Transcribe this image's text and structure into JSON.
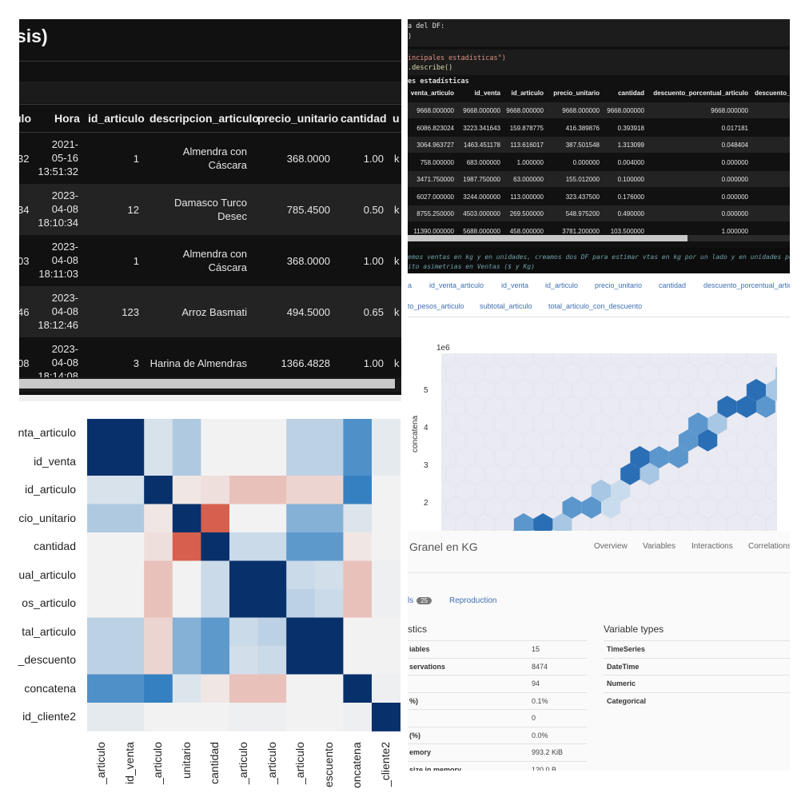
{
  "dataframe_panel": {
    "title": "sis)",
    "columns": [
      "ulo",
      "Hora",
      "id_articulo",
      "descripcion_articulo",
      "precio_unitario",
      "cantidad",
      "u"
    ],
    "rows": [
      {
        "prev": "32",
        "hora": [
          "2021-",
          "05-16",
          "13:51:32"
        ],
        "id_articulo": "1",
        "descripcion": [
          "Almendra con",
          "Cáscara"
        ],
        "precio_unitario": "368.0000",
        "cantidad": "1.00",
        "u": "k"
      },
      {
        "prev": "34",
        "hora": [
          "2023-",
          "04-08",
          "18:10:34"
        ],
        "id_articulo": "12",
        "descripcion": [
          "Damasco Turco",
          "Desec"
        ],
        "precio_unitario": "785.4500",
        "cantidad": "0.50",
        "u": "k"
      },
      {
        "prev": "03",
        "hora": [
          "2023-",
          "04-08",
          "18:11:03"
        ],
        "id_articulo": "1",
        "descripcion": [
          "Almendra con",
          "Cáscara"
        ],
        "precio_unitario": "368.0000",
        "cantidad": "1.00",
        "u": "k"
      },
      {
        "prev": "46",
        "hora": [
          "2023-",
          "04-08",
          "18:12:46"
        ],
        "id_articulo": "123",
        "descripcion": [
          "Arroz Basmati"
        ],
        "precio_unitario": "494.5000",
        "cantidad": "0.65",
        "u": "k"
      },
      {
        "prev": "08",
        "hora": [
          "2023-",
          "04-08",
          "18:14:08"
        ],
        "id_articulo": "3",
        "descripcion": [
          "Harina de Almendras"
        ],
        "precio_unitario": "1366.4828",
        "cantidad": "1.00",
        "u": "k"
      }
    ]
  },
  "describe_panel": {
    "code_line1": "a del DF:",
    "code_line2": ")",
    "code_line3_str": "incipales estadísticas\")",
    "code_line4_fn": ".describe()",
    "section_label": "es estadísticas",
    "columns": [
      "venta_articulo",
      "id_venta",
      "id_articulo",
      "precio_unitario",
      "cantidad",
      "descuento_porcentual_articulo",
      "descuento_"
    ],
    "rows": [
      [
        "9668.000000",
        "9668.000000",
        "9668.000000",
        "9668.000000",
        "9668.000000",
        "9668.000000"
      ],
      [
        "6086.823024",
        "3223.341643",
        "159.878775",
        "416.389876",
        "0.393918",
        "0.017181"
      ],
      [
        "3064.963727",
        "1463.451178",
        "113.616017",
        "387.501548",
        "1.313099",
        "0.048404"
      ],
      [
        "758.000000",
        "683.000000",
        "1.000000",
        "0.000000",
        "0.004000",
        "0.000000"
      ],
      [
        "3471.750000",
        "1987.750000",
        "63.000000",
        "155.012000",
        "0.100000",
        "0.000000"
      ],
      [
        "6027.000000",
        "3244.000000",
        "113.000000",
        "323.437500",
        "0.176000",
        "0.000000"
      ],
      [
        "8755.250000",
        "4503.000000",
        "269.500000",
        "548.975200",
        "0.490000",
        "0.000000"
      ],
      [
        "11390.000000",
        "5688.000000",
        "458.000000",
        "3781.200000",
        "103.500000",
        "1.000000"
      ]
    ],
    "comment_line1": "emos ventas en kg y en unidades, creamos dos DF para estimar vtas en kg por un lado y en unidades por",
    "comment_line2": "ito asimetrias en Ventas ($ y Kg)"
  },
  "profile_tabs": {
    "row1": [
      "a",
      "id_venta_articulo",
      "id_venta",
      "id_articulo",
      "precio_unitario",
      "cantidad",
      "descuento_porcentual_artic"
    ],
    "row2": [
      "to_pesos_articulo",
      "subtotal_articulo",
      "total_articulo_con_descuento"
    ]
  },
  "hexbin": {
    "exponent_label": "1e6",
    "y_ticks": [
      "5",
      "4",
      "3",
      "2"
    ],
    "ylabel": "concatena",
    "colors": {
      "dark": "#2a6fb5",
      "mid": "#5b97cc",
      "light": "#a7c7e5",
      "pale": "#c9dcee"
    }
  },
  "overview_panel": {
    "title": "Granel en KG",
    "nav": [
      "Overview",
      "Variables",
      "Interactions",
      "Correlations"
    ],
    "subtab_alerts": "ls",
    "subtab_alerts_count": "25",
    "subtab_reproduction": "Reproduction",
    "stats_heading": "stics",
    "stats": [
      {
        "label": "iables",
        "value": "15"
      },
      {
        "label": "servations",
        "value": "8474"
      },
      {
        "label": "",
        "value": "94"
      },
      {
        "label": "%)",
        "value": "0.1%"
      },
      {
        "label": "",
        "value": "0"
      },
      {
        "label": "(%)",
        "value": "0.0%"
      },
      {
        "label": "emory",
        "value": "993.2 KiB"
      },
      {
        "label": "size in memory",
        "value": "120.0 B"
      }
    ],
    "types_heading": "Variable types",
    "types": [
      "TimeSeries",
      "DateTime",
      "Numeric",
      "Categorical"
    ]
  },
  "heatmap": {
    "row_labels": [
      "nta_articulo",
      "id_venta",
      "id_articulo",
      "cio_unitario",
      "cantidad",
      "ual_articulo",
      "os_articulo",
      "tal_articulo",
      "_descuento",
      "concatena",
      "id_cliente2"
    ],
    "col_labels": [
      "_articulo",
      "id_venta",
      "_articulo",
      "unitario",
      "cantidad",
      "_articulo",
      "_articulo",
      "_articulo",
      "escuento",
      "oncatena",
      "_cliente2"
    ],
    "matrix": [
      [
        1.0,
        1.0,
        0.1,
        0.25,
        0.0,
        0.0,
        0.0,
        0.2,
        0.2,
        0.6,
        0.05
      ],
      [
        1.0,
        1.0,
        0.1,
        0.25,
        0.0,
        0.0,
        0.0,
        0.2,
        0.2,
        0.6,
        0.05
      ],
      [
        0.1,
        0.1,
        1.0,
        -0.05,
        -0.08,
        -0.2,
        -0.2,
        -0.12,
        -0.12,
        0.7,
        0.0
      ],
      [
        0.25,
        0.25,
        -0.05,
        1.0,
        -0.6,
        0.0,
        0.0,
        0.4,
        0.4,
        0.08,
        0.0
      ],
      [
        0.0,
        0.0,
        -0.08,
        -0.6,
        1.0,
        0.15,
        0.15,
        0.55,
        0.55,
        -0.05,
        0.0
      ],
      [
        0.0,
        0.0,
        -0.2,
        0.0,
        0.15,
        1.0,
        1.0,
        0.15,
        0.12,
        -0.2,
        0.02
      ],
      [
        0.0,
        0.0,
        -0.2,
        0.0,
        0.15,
        1.0,
        1.0,
        0.2,
        0.15,
        -0.2,
        0.02
      ],
      [
        0.2,
        0.2,
        -0.12,
        0.4,
        0.55,
        0.15,
        0.2,
        1.0,
        1.0,
        0.0,
        0.0
      ],
      [
        0.2,
        0.2,
        -0.12,
        0.4,
        0.55,
        0.12,
        0.15,
        1.0,
        1.0,
        0.0,
        0.0
      ],
      [
        0.6,
        0.6,
        0.7,
        0.08,
        -0.05,
        -0.2,
        -0.2,
        0.0,
        0.0,
        1.0,
        0.02
      ],
      [
        0.05,
        0.05,
        0.0,
        0.0,
        0.0,
        0.02,
        0.02,
        0.0,
        0.0,
        0.02,
        1.0
      ]
    ]
  }
}
